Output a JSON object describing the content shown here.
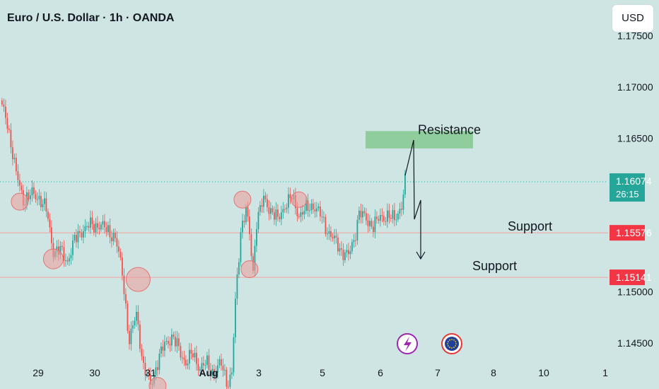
{
  "header": {
    "title": "Euro / U.S. Dollar · 1h · OANDA",
    "currency": "USD"
  },
  "colors": {
    "bull": "#26a69a",
    "bear": "#ef5350",
    "support_line": "#f4a0a0",
    "support_badge": "#f23645",
    "price_badge": "#26a69a",
    "resistance_zone": "#8fce9c",
    "circle_fill": "rgba(239,154,154,0.55)",
    "circle_stroke": "#e57373",
    "background": "#cfe5e3"
  },
  "icons": {
    "lightning": "lightning-icon",
    "flag": "eu-flag-icon"
  },
  "chart_data": {
    "type": "candlestick",
    "x_ticks": [
      "29",
      "30",
      "31",
      "Aug",
      "3",
      "5",
      "6",
      "7",
      "8",
      "10",
      "1"
    ],
    "y_ticks": [
      "1.17500",
      "1.17000",
      "1.16500",
      "1.15000",
      "1.14500"
    ],
    "ylim": [
      1.1405,
      1.1785
    ],
    "current_price": {
      "value": "1.16074",
      "countdown": "26:15"
    },
    "levels": [
      {
        "value": 1.15576,
        "label": "1.15576",
        "annotation": "Support"
      },
      {
        "value": 1.15141,
        "label": "1.15141",
        "annotation": "Support"
      }
    ],
    "resistance": {
      "label": "Resistance",
      "low": 1.164,
      "high": 1.1657
    },
    "swing_anchors": [
      [
        0,
        1.168
      ],
      [
        3,
        1.1665
      ],
      [
        8,
        1.1615
      ],
      [
        12,
        1.159
      ],
      [
        17,
        1.1595
      ],
      [
        21,
        1.1592
      ],
      [
        25,
        1.158
      ],
      [
        29,
        1.154
      ],
      [
        33,
        1.154
      ],
      [
        37,
        1.153
      ],
      [
        41,
        1.155
      ],
      [
        45,
        1.156
      ],
      [
        50,
        1.1565
      ],
      [
        55,
        1.1565
      ],
      [
        60,
        1.156
      ],
      [
        64,
        1.1552
      ],
      [
        68,
        1.152
      ],
      [
        72,
        1.145
      ],
      [
        76,
        1.148
      ],
      [
        80,
        1.1425
      ],
      [
        84,
        1.141
      ],
      [
        88,
        1.143
      ],
      [
        92,
        1.145
      ],
      [
        96,
        1.1455
      ],
      [
        100,
        1.1445
      ],
      [
        104,
        1.143
      ],
      [
        108,
        1.144
      ],
      [
        112,
        1.1425
      ],
      [
        116,
        1.143
      ],
      [
        120,
        1.142
      ],
      [
        124,
        1.143
      ],
      [
        128,
        1.141
      ],
      [
        130,
        1.142
      ],
      [
        132,
        1.149
      ],
      [
        135,
        1.156
      ],
      [
        138,
        1.158
      ],
      [
        140,
        1.1555
      ],
      [
        142,
        1.152
      ],
      [
        144,
        1.157
      ],
      [
        148,
        1.159
      ],
      [
        152,
        1.158
      ],
      [
        156,
        1.157
      ],
      [
        160,
        1.1585
      ],
      [
        164,
        1.1592
      ],
      [
        168,
        1.1575
      ],
      [
        172,
        1.158
      ],
      [
        176,
        1.1585
      ],
      [
        180,
        1.1575
      ],
      [
        184,
        1.156
      ],
      [
        188,
        1.155
      ],
      [
        192,
        1.154
      ],
      [
        196,
        1.1535
      ],
      [
        199,
        1.155
      ],
      [
        202,
        1.1578
      ],
      [
        206,
        1.157
      ],
      [
        210,
        1.1565
      ],
      [
        214,
        1.1572
      ],
      [
        218,
        1.1575
      ],
      [
        222,
        1.157
      ],
      [
        226,
        1.1585
      ],
      [
        228,
        1.1607
      ]
    ],
    "highlight_circles": [
      {
        "date_index": 10,
        "price": 1.1588,
        "r": 12
      },
      {
        "date_index": 29,
        "price": 1.1532,
        "r": 14
      },
      {
        "date_index": 77,
        "price": 1.1512,
        "r": 17
      },
      {
        "date_index": 88,
        "price": 1.1408,
        "r": 12
      },
      {
        "date_index": 136,
        "price": 1.159,
        "r": 12
      },
      {
        "date_index": 140,
        "price": 1.1522,
        "r": 12
      },
      {
        "date_index": 168,
        "price": 1.159,
        "r": 11
      }
    ]
  }
}
